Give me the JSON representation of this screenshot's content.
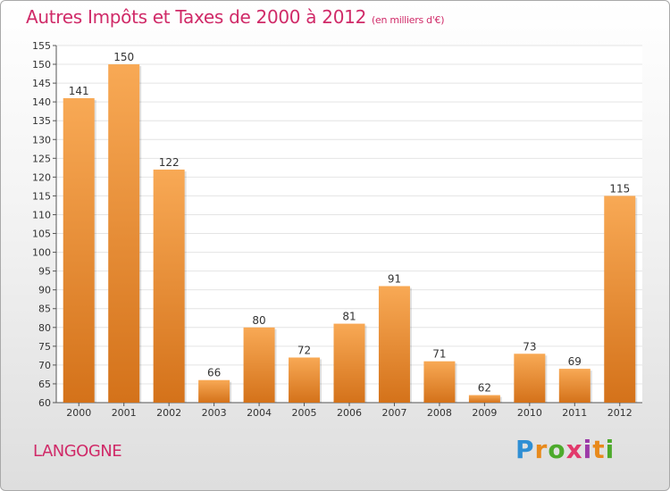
{
  "title": "Autres Impôts et Taxes de 2000 à 2012",
  "subtitle": "(en milliers d'€)",
  "place": "LANGOGNE",
  "brand": "Proxiti",
  "colors": {
    "title": "#d02a68",
    "bar_top": "#f8a955",
    "bar_bottom": "#d4721a",
    "grid": "#e4e4e4"
  },
  "chart_data": {
    "type": "bar",
    "title": "Autres Impôts et Taxes de 2000 à 2012",
    "subtitle": "(en milliers d'€)",
    "categories": [
      "2000",
      "2001",
      "2002",
      "2003",
      "2004",
      "2005",
      "2006",
      "2007",
      "2008",
      "2009",
      "2010",
      "2011",
      "2012"
    ],
    "values": [
      141,
      150,
      122,
      66,
      80,
      72,
      81,
      91,
      71,
      62,
      73,
      69,
      115
    ],
    "value_labels": [
      "141",
      "150",
      "122",
      "66",
      "80",
      "72",
      "81",
      "91",
      "71",
      "62",
      "73",
      "69",
      "115"
    ],
    "ylim": [
      60,
      155
    ],
    "yticks": [
      60,
      65,
      70,
      75,
      80,
      85,
      90,
      95,
      100,
      105,
      110,
      115,
      120,
      125,
      130,
      135,
      140,
      145,
      150,
      155
    ],
    "grid": true,
    "legend": "none"
  }
}
